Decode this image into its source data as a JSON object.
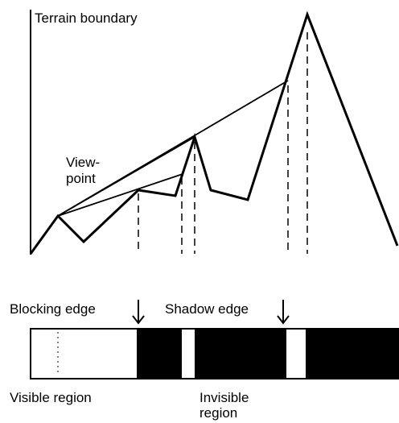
{
  "title": "Terrain boundary",
  "viewpoint": {
    "line1": "View-",
    "line2": "point"
  },
  "labels": {
    "blocking_edge": "Blocking edge",
    "shadow_edge": "Shadow edge"
  },
  "regions": {
    "visible": "Visible region",
    "invisible_line1": "Invisible",
    "invisible_line2": "region"
  }
}
